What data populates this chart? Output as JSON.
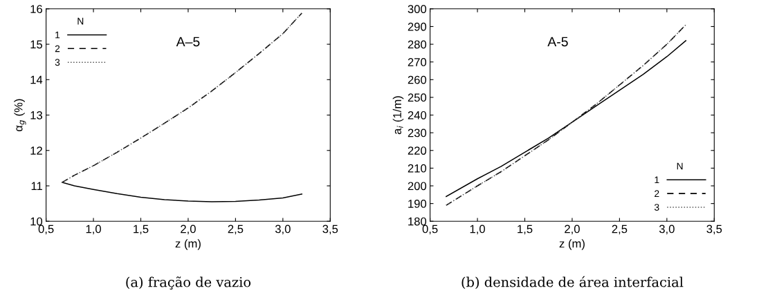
{
  "chart_data": [
    {
      "type": "line",
      "xlabel": "z (m)",
      "ylabel": "α$_{g}$ (%)",
      "legend_title": "N",
      "legend": "top left",
      "grid": false,
      "marker": "none",
      "annotations": [
        "A–5",
        "(a) fração de vazio"
      ],
      "xlim": [
        0.5,
        3.5
      ],
      "xticks": [
        {
          "value": 0.5,
          "label": "0,5"
        },
        {
          "value": 1.0,
          "label": "1,0"
        },
        {
          "value": 1.5,
          "label": "1,5"
        },
        {
          "value": 2.0,
          "label": "2,0"
        },
        {
          "value": 2.5,
          "label": "2,5"
        },
        {
          "value": 3.0,
          "label": "3,0"
        },
        {
          "value": 3.5,
          "label": "3,5"
        }
      ],
      "ylim": [
        10,
        16
      ],
      "yticks": [
        10,
        11,
        12,
        13,
        14,
        15,
        16
      ],
      "x": [
        0.67,
        0.8,
        1.0,
        1.25,
        1.5,
        1.75,
        2.0,
        2.25,
        2.5,
        2.75,
        3.0,
        3.2
      ],
      "series": [
        {
          "name": "1",
          "color": "#000000",
          "line_style": "solid",
          "values": [
            11.1,
            11.0,
            10.9,
            10.78,
            10.68,
            10.61,
            10.57,
            10.55,
            10.56,
            10.6,
            10.66,
            10.77
          ]
        },
        {
          "name": "2",
          "color": "#000000",
          "line_style": "dashed",
          "values": [
            11.1,
            11.3,
            11.57,
            11.95,
            12.35,
            12.77,
            13.2,
            13.68,
            14.2,
            14.74,
            15.3,
            15.88
          ]
        },
        {
          "name": "3",
          "color": "#555555",
          "line_style": "dotted",
          "values": [
            11.1,
            11.3,
            11.57,
            11.95,
            12.35,
            12.77,
            13.2,
            13.68,
            14.2,
            14.74,
            15.3,
            15.88
          ]
        }
      ]
    },
    {
      "type": "line",
      "xlabel": "z (m)",
      "ylabel": "a$_{i}$ (1/m)",
      "legend_title": "N",
      "legend": "bottom right",
      "grid": false,
      "marker": "none",
      "annotations": [
        "A-5",
        "(b) densidade de área interfacial"
      ],
      "xlim": [
        0.5,
        3.5
      ],
      "xticks": [
        {
          "value": 0.5,
          "label": "0,5"
        },
        {
          "value": 1.0,
          "label": "1,0"
        },
        {
          "value": 1.5,
          "label": "1,5"
        },
        {
          "value": 2.0,
          "label": "2,0"
        },
        {
          "value": 2.5,
          "label": "2,5"
        },
        {
          "value": 3.0,
          "label": "3,0"
        },
        {
          "value": 3.5,
          "label": "3,5"
        }
      ],
      "ylim": [
        180,
        300
      ],
      "yticks": [
        180,
        190,
        200,
        210,
        220,
        230,
        240,
        250,
        260,
        270,
        280,
        290,
        300
      ],
      "x": [
        0.67,
        1.0,
        1.25,
        1.5,
        1.75,
        2.0,
        2.25,
        2.5,
        2.75,
        3.0,
        3.2
      ],
      "series": [
        {
          "name": "1",
          "color": "#000000",
          "line_style": "solid",
          "values": [
            194,
            204,
            211,
            219,
            227,
            236,
            245,
            254,
            263,
            273,
            282
          ]
        },
        {
          "name": "2",
          "color": "#000000",
          "line_style": "dashed",
          "values": [
            189,
            200,
            208,
            217,
            226,
            236,
            246,
            257,
            268,
            280,
            291
          ]
        },
        {
          "name": "3",
          "color": "#555555",
          "line_style": "dotted",
          "values": [
            189,
            200,
            208,
            217,
            226,
            236,
            246,
            257,
            268,
            280,
            291
          ]
        }
      ]
    }
  ]
}
